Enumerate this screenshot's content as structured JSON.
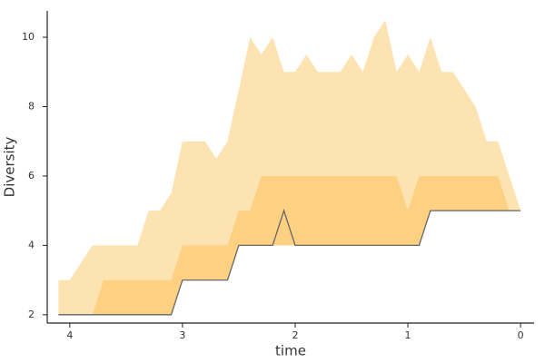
{
  "chart_data": {
    "type": "band-line",
    "x_label": "time",
    "y_label": "Diversity",
    "x": [
      4.1,
      4.0,
      3.9,
      3.8,
      3.7,
      3.6,
      3.5,
      3.4,
      3.3,
      3.2,
      3.1,
      3.0,
      2.9,
      2.8,
      2.7,
      2.6,
      2.5,
      2.4,
      2.3,
      2.2,
      2.1,
      2.0,
      1.9,
      1.8,
      1.7,
      1.6,
      1.5,
      1.4,
      1.3,
      1.2,
      1.1,
      1.0,
      0.9,
      0.8,
      0.7,
      0.6,
      0.5,
      0.4,
      0.3,
      0.2,
      0.1,
      0.0
    ],
    "bands": [
      {
        "color": "#fde3b2",
        "upper": [
          3,
          3,
          3.5,
          4,
          4,
          4,
          4,
          4,
          5,
          5,
          5.5,
          7,
          7,
          7,
          6.5,
          7,
          8.5,
          10,
          9.5,
          10,
          9,
          9,
          9.5,
          9,
          9,
          9,
          9.5,
          9,
          10,
          10.5,
          9,
          9.5,
          9,
          10,
          9,
          9,
          8.5,
          8,
          7,
          7,
          6,
          5
        ],
        "lower": [
          2,
          2,
          2,
          2,
          2,
          2,
          2,
          2,
          2,
          2,
          2,
          3,
          3,
          3,
          3,
          3,
          4,
          4,
          4,
          4,
          4,
          4,
          4,
          4,
          4,
          4,
          4,
          4,
          4,
          4,
          4,
          4,
          4,
          5,
          5,
          5,
          5,
          5,
          5,
          5,
          5,
          5
        ]
      },
      {
        "color": "#fdd082",
        "upper": [
          2,
          2,
          2,
          2,
          3,
          3,
          3,
          3,
          3,
          3,
          3,
          4,
          4,
          4,
          4,
          4,
          5,
          5,
          6,
          6,
          6,
          6,
          6,
          6,
          6,
          6,
          6,
          6,
          6,
          6,
          6,
          5,
          6,
          6,
          6,
          6,
          6,
          6,
          6,
          6,
          5,
          5
        ],
        "lower": [
          2,
          2,
          2,
          2,
          2,
          2,
          2,
          2,
          2,
          2,
          2,
          3,
          3,
          3,
          3,
          3,
          4,
          4,
          4,
          4,
          4,
          4,
          4,
          4,
          4,
          4,
          4,
          4,
          4,
          4,
          4,
          4,
          4,
          5,
          5,
          5,
          5,
          5,
          5,
          5,
          5,
          5
        ]
      }
    ],
    "series": [
      {
        "color": "#666666",
        "values": [
          2,
          2,
          2,
          2,
          2,
          2,
          2,
          2,
          2,
          2,
          2,
          3,
          3,
          3,
          3,
          3,
          4,
          4,
          4,
          4,
          5,
          4,
          4,
          4,
          4,
          4,
          4,
          4,
          4,
          4,
          4,
          4,
          4,
          5,
          5,
          5,
          5,
          5,
          5,
          5,
          5,
          5
        ]
      }
    ],
    "xlim": [
      4.2,
      -0.12
    ],
    "xticks": [
      4,
      3,
      2,
      1,
      0
    ],
    "ylim": [
      1.76,
      10.76
    ],
    "yticks": [
      2,
      4,
      6,
      8,
      10
    ]
  }
}
